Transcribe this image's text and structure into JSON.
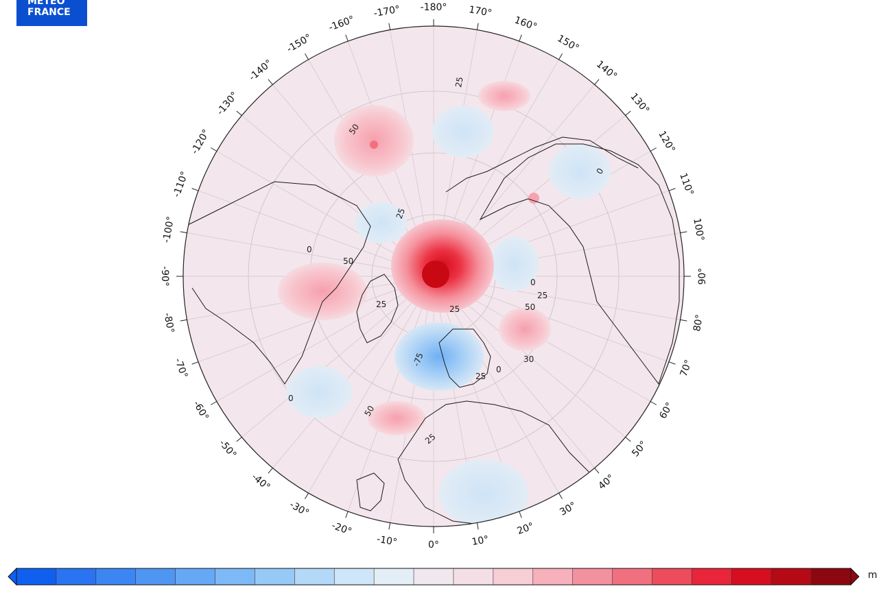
{
  "logo": {
    "line1": "METEO",
    "line2": "FRANCE"
  },
  "map": {
    "projection": "north-polar-stereographic",
    "background_color": "#f3e6ec",
    "longitude_labels": [
      "-180°",
      "170°",
      "160°",
      "150°",
      "140°",
      "130°",
      "120°",
      "110°",
      "100°",
      "90°",
      "80°",
      "70°",
      "60°",
      "50°",
      "40°",
      "30°",
      "20°",
      "10°",
      "0°",
      "-10°",
      "-20°",
      "-30°",
      "-40°",
      "-50°",
      "-60°",
      "-70°",
      "-80°",
      "-90°",
      "-100°",
      "-110°",
      "-120°",
      "-130°",
      "-140°",
      "-150°",
      "-160°",
      "-170°"
    ],
    "longitude_values": [
      180,
      170,
      160,
      150,
      140,
      130,
      120,
      110,
      100,
      90,
      80,
      70,
      60,
      50,
      40,
      30,
      20,
      10,
      0,
      -10,
      -20,
      -30,
      -40,
      -50,
      -60,
      -70,
      -80,
      -90,
      -100,
      -110,
      -120,
      -130,
      -140,
      -150,
      -160,
      -170
    ],
    "contour_labels": [
      "25",
      "50",
      "0",
      "25",
      "50",
      "0",
      "25",
      "25",
      "0",
      "25",
      "50",
      "-75",
      "25",
      "0",
      "30",
      "0",
      "50",
      "25"
    ]
  },
  "colorbar": {
    "unit": "m",
    "colors": [
      "#1060f0",
      "#2a74f2",
      "#3b86f2",
      "#4f96f3",
      "#65a8f5",
      "#7db9f6",
      "#97c9f7",
      "#b3d8f8",
      "#cfe6f8",
      "#e3eef6",
      "#f0e8ef",
      "#f4dfe6",
      "#f7cdd6",
      "#f6b1bd",
      "#f3919f",
      "#f07080",
      "#ec4c5c",
      "#e8253a",
      "#d60e1f",
      "#b50a16",
      "#8d0710"
    ]
  }
}
